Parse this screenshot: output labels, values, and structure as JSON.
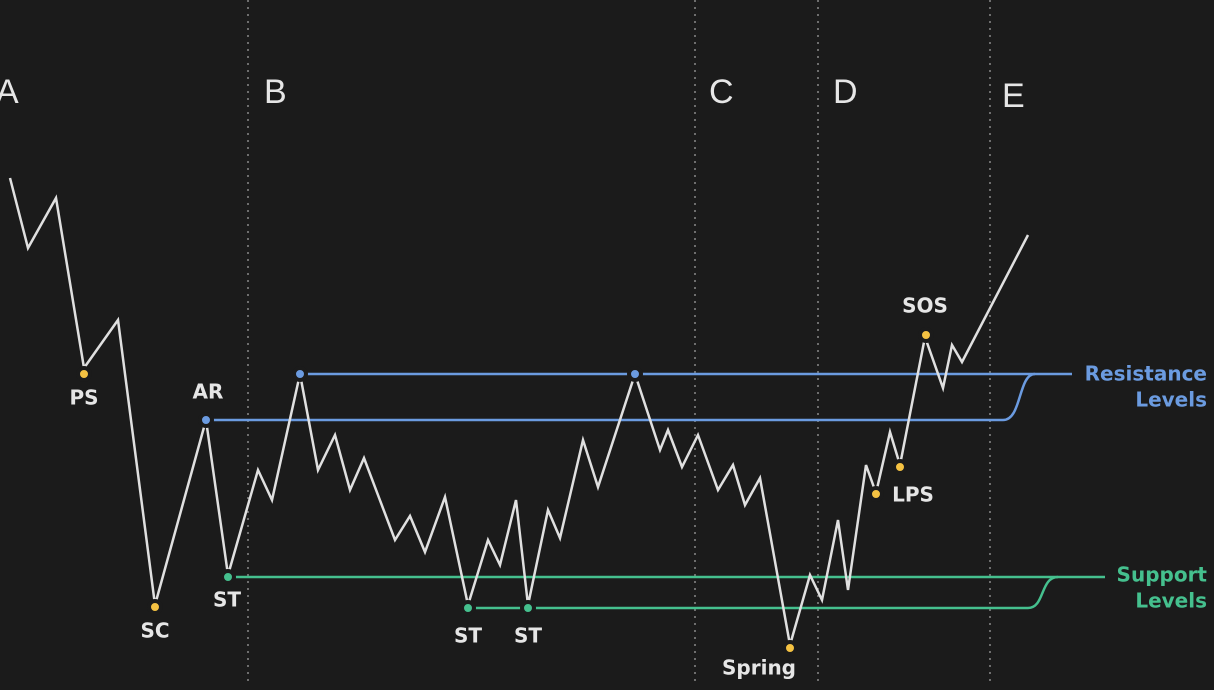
{
  "phases": [
    "A",
    "B",
    "C",
    "D",
    "E"
  ],
  "labels": {
    "ps": "PS",
    "sc": "SC",
    "ar": "AR",
    "st1": "ST",
    "st2": "ST",
    "st3": "ST",
    "spring": "Spring",
    "lps": "LPS",
    "sos": "SOS"
  },
  "legend": {
    "resistance": [
      "Resistance",
      "Levels"
    ],
    "support": [
      "Support",
      "Levels"
    ]
  }
}
